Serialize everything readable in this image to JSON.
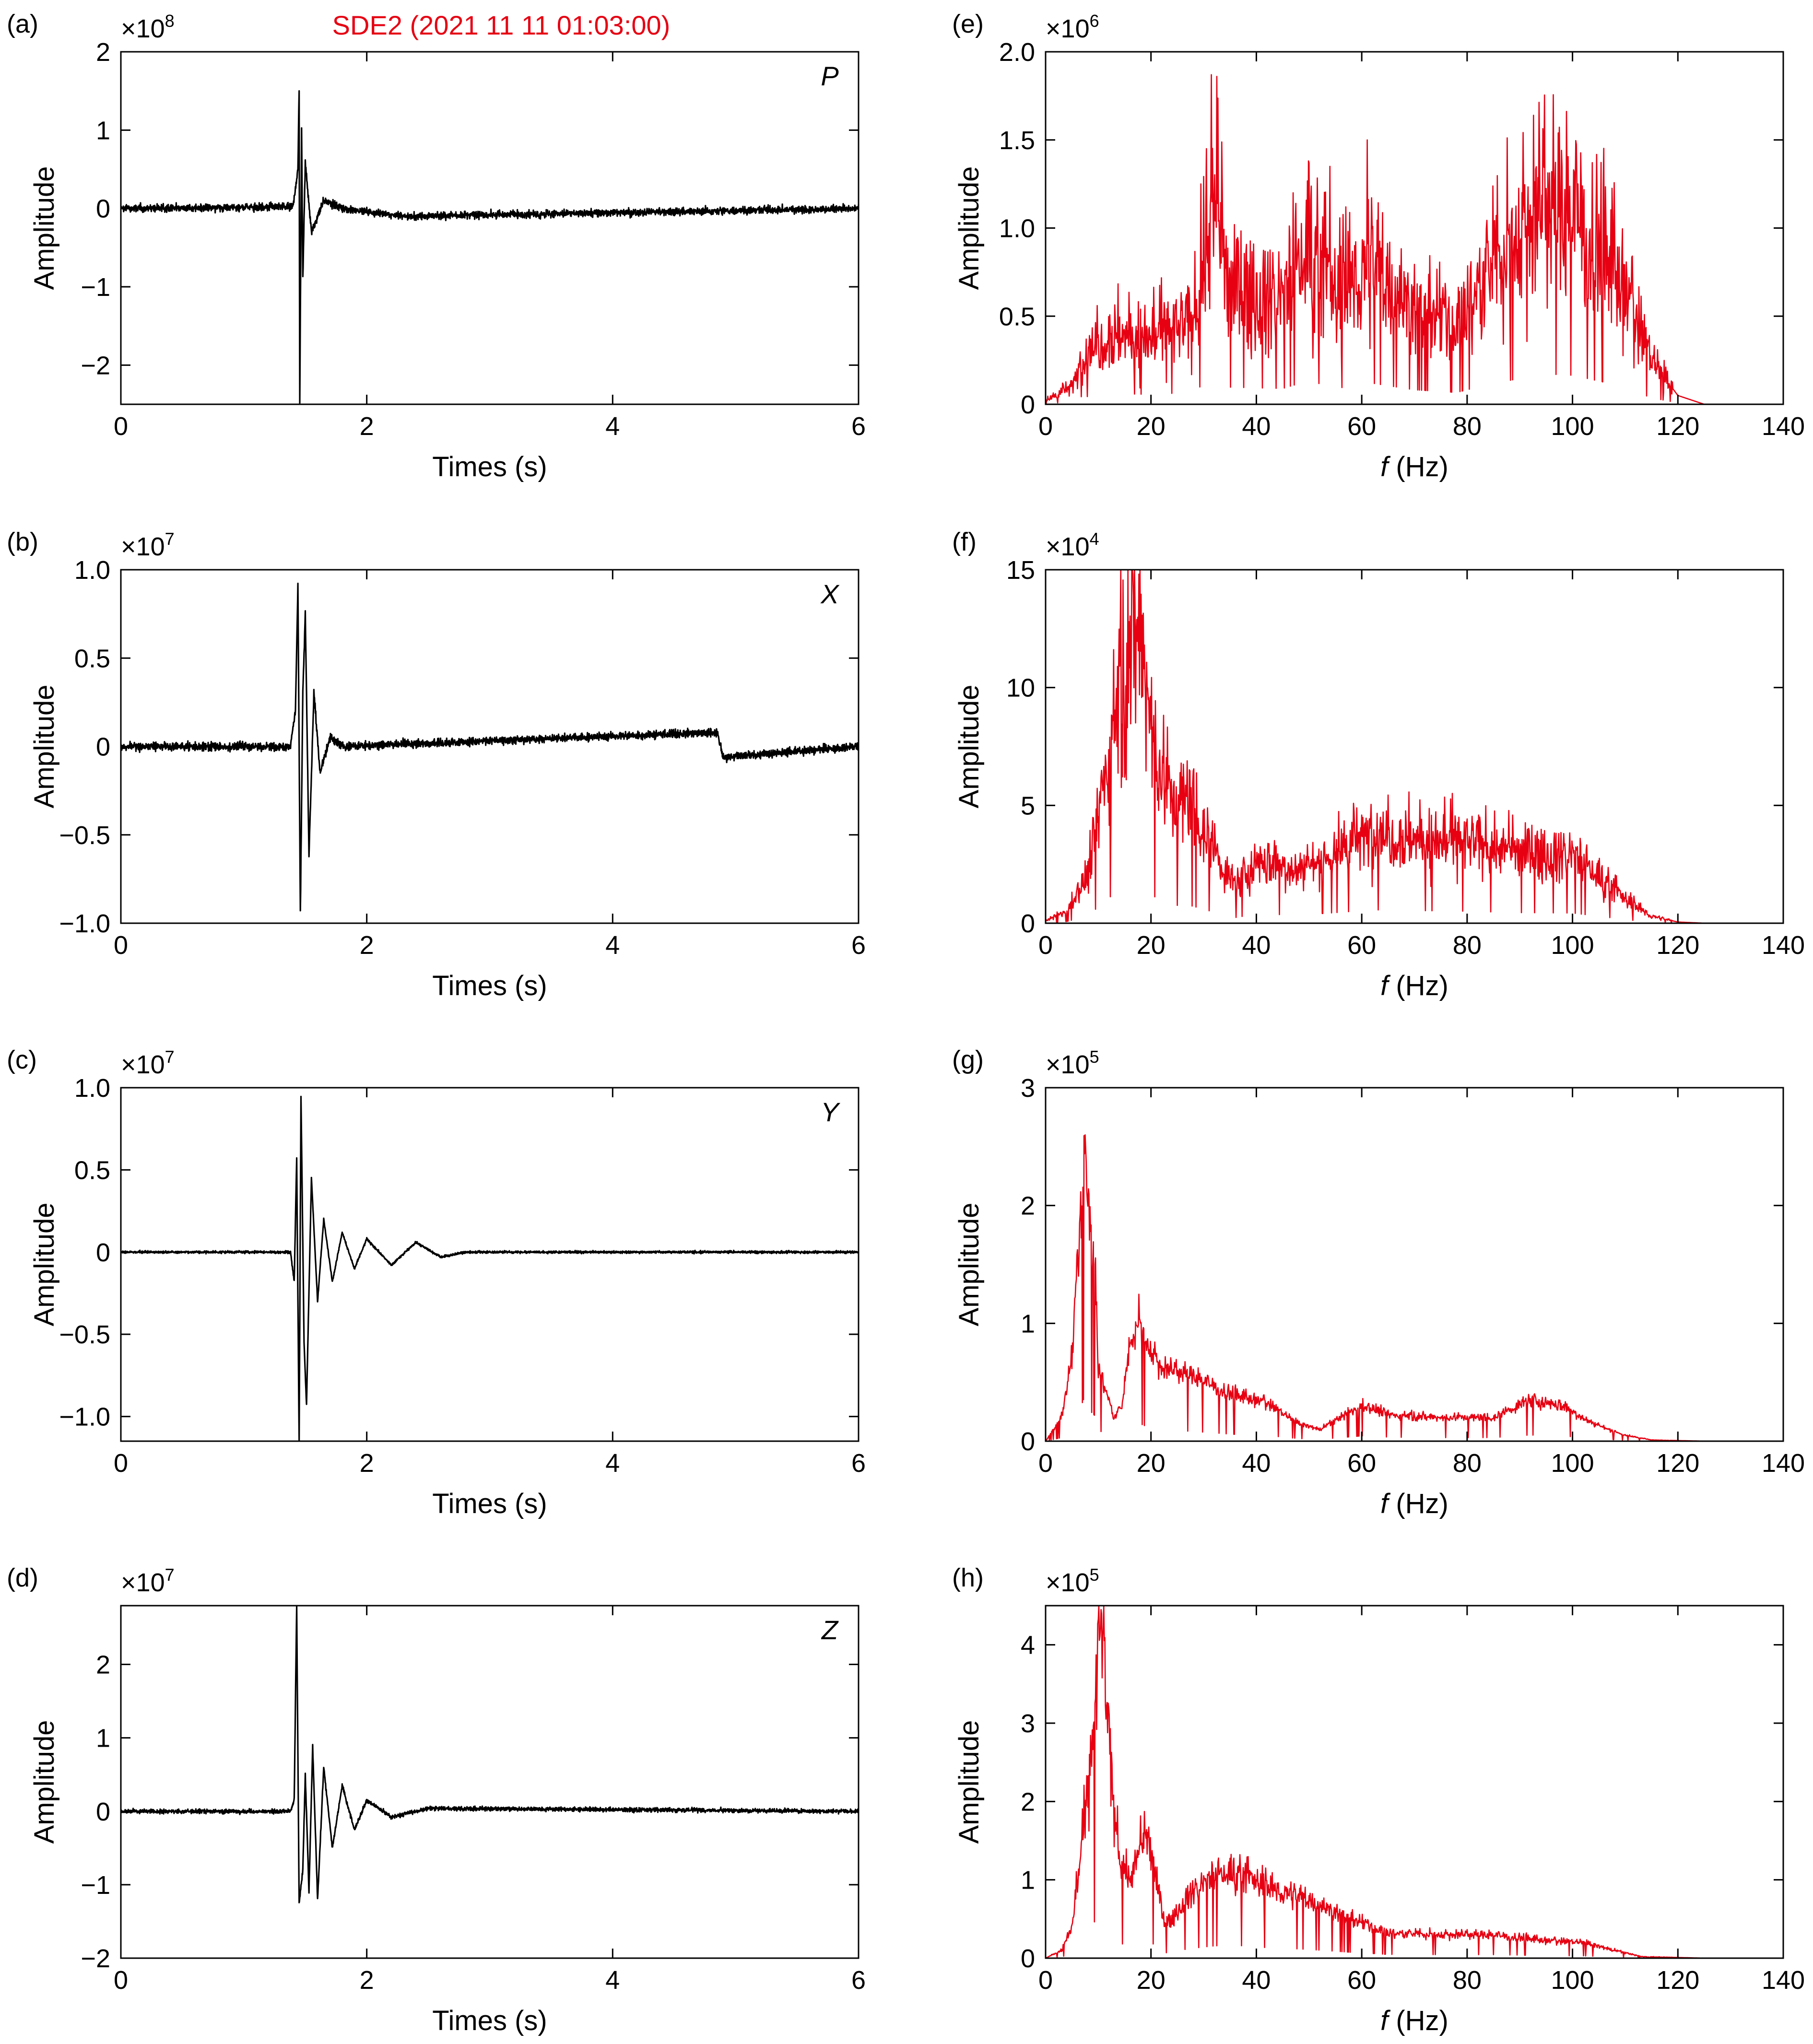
{
  "figure": {
    "title": "SDE2 (2021 11 11 01:03:00)",
    "title_color": "#e60012",
    "time_series_color": "#000000",
    "spectrum_color": "#e60012"
  },
  "chart_data": [
    {
      "panel": "(a)",
      "type": "line",
      "kind": "waveform",
      "component": "P",
      "xlabel": "Times (s)",
      "ylabel": "Amplitude",
      "exponent_base": "×10",
      "exponent_power": "8",
      "xlim": [
        0,
        6
      ],
      "ylim": [
        -2.5,
        2
      ],
      "xticks": [
        0,
        2,
        4,
        6
      ],
      "xticklabels": [
        "0",
        "2",
        "4",
        "6"
      ],
      "yticks": [
        -2,
        -1,
        0,
        1,
        2
      ],
      "yticklabels": [
        "−2",
        "−1",
        "0",
        "1",
        "2"
      ],
      "series": [
        {
          "onset": 1.46,
          "noise": 0.05,
          "points": [
            [
              0,
              0.0
            ],
            [
              1.4,
              0.02
            ],
            [
              1.44,
              0.5
            ],
            [
              1.45,
              1.5
            ],
            [
              1.455,
              -2.5
            ],
            [
              1.47,
              1.0
            ],
            [
              1.48,
              -0.9
            ],
            [
              1.5,
              0.6
            ],
            [
              1.55,
              -0.3
            ],
            [
              1.65,
              0.1
            ],
            [
              1.8,
              0.0
            ],
            [
              2.3,
              -0.1
            ],
            [
              6,
              0.0
            ]
          ]
        }
      ]
    },
    {
      "panel": "(b)",
      "type": "line",
      "kind": "waveform",
      "component": "X",
      "xlabel": "Times (s)",
      "ylabel": "Amplitude",
      "exponent_base": "×10",
      "exponent_power": "7",
      "xlim": [
        0,
        6
      ],
      "ylim": [
        -1.0,
        1.0
      ],
      "xticks": [
        0,
        2,
        4,
        6
      ],
      "xticklabels": [
        "0",
        "2",
        "4",
        "6"
      ],
      "yticks": [
        -1.0,
        -0.5,
        0,
        0.5,
        1.0
      ],
      "yticklabels": [
        "−1.0",
        "−0.5",
        "0",
        "0.5",
        "1.0"
      ],
      "series": [
        {
          "onset": 1.4,
          "noise": 0.025,
          "points": [
            [
              0,
              0.0
            ],
            [
              1.38,
              0.0
            ],
            [
              1.42,
              0.2
            ],
            [
              1.44,
              0.91
            ],
            [
              1.46,
              -0.95
            ],
            [
              1.48,
              0.3
            ],
            [
              1.5,
              0.76
            ],
            [
              1.53,
              -0.62
            ],
            [
              1.57,
              0.31
            ],
            [
              1.62,
              -0.15
            ],
            [
              1.7,
              0.05
            ],
            [
              1.8,
              0.0
            ],
            [
              4.85,
              0.08
            ],
            [
              4.9,
              -0.06
            ],
            [
              6,
              0.0
            ]
          ]
        }
      ]
    },
    {
      "panel": "(c)",
      "type": "line",
      "kind": "waveform",
      "component": "Y",
      "xlabel": "Times (s)",
      "ylabel": "Amplitude",
      "exponent_base": "×10",
      "exponent_power": "7",
      "xlim": [
        0,
        6
      ],
      "ylim": [
        -1.15,
        1.0
      ],
      "xticks": [
        0,
        2,
        4,
        6
      ],
      "xticklabels": [
        "0",
        "2",
        "4",
        "6"
      ],
      "yticks": [
        -1.0,
        -0.5,
        0,
        0.5,
        1.0
      ],
      "yticklabels": [
        "−1.0",
        "−0.5",
        "0",
        "0.5",
        "1.0"
      ],
      "series": [
        {
          "onset": 1.4,
          "noise": 0.008,
          "points": [
            [
              0,
              0.0
            ],
            [
              1.38,
              0.0
            ],
            [
              1.41,
              -0.18
            ],
            [
              1.43,
              0.57
            ],
            [
              1.45,
              -1.15
            ],
            [
              1.465,
              0.95
            ],
            [
              1.49,
              -0.55
            ],
            [
              1.51,
              -0.93
            ],
            [
              1.55,
              0.45
            ],
            [
              1.6,
              -0.3
            ],
            [
              1.65,
              0.2
            ],
            [
              1.72,
              -0.18
            ],
            [
              1.8,
              0.12
            ],
            [
              1.9,
              -0.1
            ],
            [
              2.0,
              0.08
            ],
            [
              2.2,
              -0.08
            ],
            [
              2.4,
              0.06
            ],
            [
              2.6,
              -0.03
            ],
            [
              2.8,
              0.0
            ],
            [
              6,
              0.0
            ]
          ]
        }
      ]
    },
    {
      "panel": "(d)",
      "type": "line",
      "kind": "waveform",
      "component": "Z",
      "xlabel": "Times (s)",
      "ylabel": "Amplitude",
      "exponent_base": "×10",
      "exponent_power": "7",
      "xlim": [
        0,
        6
      ],
      "ylim": [
        -2,
        2.8
      ],
      "xticks": [
        0,
        2,
        4,
        6
      ],
      "xticklabels": [
        "0",
        "2",
        "4",
        "6"
      ],
      "yticks": [
        -2,
        -1,
        0,
        1,
        2
      ],
      "yticklabels": [
        "−2",
        "−1",
        "0",
        "1",
        "2"
      ],
      "series": [
        {
          "onset": 1.4,
          "noise": 0.03,
          "points": [
            [
              0,
              0.0
            ],
            [
              1.38,
              0.0
            ],
            [
              1.41,
              0.15
            ],
            [
              1.43,
              2.8
            ],
            [
              1.45,
              -1.25
            ],
            [
              1.48,
              -0.8
            ],
            [
              1.5,
              0.5
            ],
            [
              1.53,
              -1.1
            ],
            [
              1.56,
              0.88
            ],
            [
              1.6,
              -1.2
            ],
            [
              1.65,
              0.6
            ],
            [
              1.72,
              -0.5
            ],
            [
              1.8,
              0.35
            ],
            [
              1.9,
              -0.25
            ],
            [
              2.0,
              0.15
            ],
            [
              2.2,
              -0.08
            ],
            [
              2.5,
              0.04
            ],
            [
              6,
              0.0
            ]
          ]
        }
      ]
    },
    {
      "panel": "(e)",
      "type": "line",
      "kind": "spectrum",
      "xlabel": "f (Hz)",
      "ylabel": "Amplitude",
      "exponent_base": "×10",
      "exponent_power": "6",
      "xlim": [
        0,
        140
      ],
      "ylim": [
        0,
        2.0
      ],
      "xticks": [
        0,
        20,
        40,
        60,
        80,
        100,
        120,
        140
      ],
      "xticklabels": [
        "0",
        "20",
        "40",
        "60",
        "80",
        "100",
        "120",
        "140"
      ],
      "yticks": [
        0,
        0.5,
        1.0,
        1.5,
        2.0
      ],
      "yticklabels": [
        "0",
        "0.5",
        "1.0",
        "1.5",
        "2.0"
      ],
      "series": [
        {
          "noise": 0.38,
          "fmax": 125,
          "envelope": [
            [
              0,
              0.02
            ],
            [
              5,
              0.1
            ],
            [
              8,
              0.3
            ],
            [
              12,
              0.4
            ],
            [
              20,
              0.38
            ],
            [
              28,
              0.45
            ],
            [
              32,
              1.1
            ],
            [
              35,
              0.65
            ],
            [
              45,
              0.6
            ],
            [
              50,
              0.9
            ],
            [
              55,
              0.6
            ],
            [
              62,
              0.8
            ],
            [
              70,
              0.55
            ],
            [
              78,
              0.45
            ],
            [
              85,
              0.8
            ],
            [
              95,
              1.15
            ],
            [
              100,
              1.1
            ],
            [
              108,
              0.75
            ],
            [
              115,
              0.25
            ],
            [
              120,
              0.05
            ],
            [
              125,
              0.0
            ]
          ],
          "peaks": [
            [
              31.5,
              1.87
            ],
            [
              32.5,
              1.86
            ],
            [
              30.5,
              1.45
            ],
            [
              29.5,
              1.25
            ],
            [
              33.5,
              1.2
            ],
            [
              50,
              1.37
            ],
            [
              54,
              1.35
            ],
            [
              61,
              1.5
            ],
            [
              57,
              1.12
            ],
            [
              47,
              1.2
            ],
            [
              96,
              1.32
            ],
            [
              99,
              1.3
            ],
            [
              101,
              1.25
            ]
          ]
        }
      ]
    },
    {
      "panel": "(f)",
      "type": "line",
      "kind": "spectrum",
      "xlabel": "f (Hz)",
      "ylabel": "Amplitude",
      "exponent_base": "×10",
      "exponent_power": "4",
      "xlim": [
        0,
        140
      ],
      "ylim": [
        0,
        15
      ],
      "xticks": [
        0,
        20,
        40,
        60,
        80,
        100,
        120,
        140
      ],
      "xticklabels": [
        "0",
        "20",
        "40",
        "60",
        "80",
        "100",
        "120",
        "140"
      ],
      "yticks": [
        0,
        5,
        10,
        15
      ],
      "yticklabels": [
        "0",
        "5",
        "10",
        "15"
      ],
      "series": [
        {
          "noise": 0.28,
          "fmax": 125,
          "envelope": [
            [
              0,
              0.1
            ],
            [
              4,
              0.5
            ],
            [
              8,
              2.0
            ],
            [
              11,
              6.0
            ],
            [
              14,
              9.5
            ],
            [
              17,
              12.8
            ],
            [
              19,
              10.5
            ],
            [
              21,
              7.0
            ],
            [
              24,
              5.0
            ],
            [
              27,
              5.2
            ],
            [
              30,
              4.0
            ],
            [
              34,
              2.2
            ],
            [
              36,
              1.6
            ],
            [
              40,
              2.6
            ],
            [
              48,
              2.3
            ],
            [
              55,
              3.0
            ],
            [
              62,
              3.8
            ],
            [
              70,
              3.6
            ],
            [
              80,
              3.4
            ],
            [
              90,
              3.0
            ],
            [
              100,
              2.9
            ],
            [
              106,
              1.8
            ],
            [
              110,
              1.0
            ],
            [
              115,
              0.3
            ],
            [
              120,
              0.05
            ],
            [
              125,
              0.0
            ]
          ],
          "peaks": [
            [
              17,
              13.5
            ]
          ]
        }
      ]
    },
    {
      "panel": "(g)",
      "type": "line",
      "kind": "spectrum",
      "xlabel": "f (Hz)",
      "ylabel": "Amplitude",
      "exponent_base": "×10",
      "exponent_power": "5",
      "xlim": [
        0,
        140
      ],
      "ylim": [
        0,
        3
      ],
      "xticks": [
        0,
        20,
        40,
        60,
        80,
        100,
        120,
        140
      ],
      "xticklabels": [
        "0",
        "20",
        "40",
        "60",
        "80",
        "100",
        "120",
        "140"
      ],
      "yticks": [
        0,
        1,
        2,
        3
      ],
      "yticklabels": [
        "0",
        "1",
        "2",
        "3"
      ],
      "series": [
        {
          "noise": 0.12,
          "fmax": 125,
          "envelope": [
            [
              0,
              0.0
            ],
            [
              3,
              0.2
            ],
            [
              5,
              0.7
            ],
            [
              6.5,
              1.8
            ],
            [
              7.5,
              2.6
            ],
            [
              8.5,
              1.7
            ],
            [
              9.5,
              1.4
            ],
            [
              10,
              0.6
            ],
            [
              11,
              0.5
            ],
            [
              13,
              0.2
            ],
            [
              14.5,
              0.3
            ],
            [
              16,
              0.8
            ],
            [
              17.5,
              1.05
            ],
            [
              19,
              0.85
            ],
            [
              22,
              0.62
            ],
            [
              28,
              0.56
            ],
            [
              35,
              0.4
            ],
            [
              42,
              0.32
            ],
            [
              48,
              0.15
            ],
            [
              52,
              0.1
            ],
            [
              56,
              0.2
            ],
            [
              60,
              0.3
            ],
            [
              66,
              0.22
            ],
            [
              75,
              0.2
            ],
            [
              85,
              0.2
            ],
            [
              92,
              0.35
            ],
            [
              98,
              0.3
            ],
            [
              104,
              0.15
            ],
            [
              110,
              0.05
            ],
            [
              115,
              0.01
            ],
            [
              125,
              0.0
            ]
          ],
          "peaks": [
            [
              7.5,
              2.6
            ],
            [
              8.5,
              1.78
            ]
          ]
        }
      ]
    },
    {
      "panel": "(h)",
      "type": "line",
      "kind": "spectrum",
      "xlabel": "f (Hz)",
      "ylabel": "Amplitude",
      "exponent_base": "×10",
      "exponent_power": "5",
      "xlim": [
        0,
        140
      ],
      "ylim": [
        0,
        4.5
      ],
      "xticks": [
        0,
        20,
        40,
        60,
        80,
        100,
        120,
        140
      ],
      "xticklabels": [
        "0",
        "20",
        "40",
        "60",
        "80",
        "100",
        "120",
        "140"
      ],
      "yticks": [
        0,
        1,
        2,
        3,
        4
      ],
      "yticklabels": [
        "0",
        "1",
        "2",
        "3",
        "4"
      ],
      "series": [
        {
          "noise": 0.15,
          "fmax": 125,
          "envelope": [
            [
              0,
              0.0
            ],
            [
              3,
              0.1
            ],
            [
              5,
              0.4
            ],
            [
              7,
              1.5
            ],
            [
              8.5,
              2.4
            ],
            [
              9.5,
              3.3
            ],
            [
              10.5,
              4.45
            ],
            [
              11.5,
              3.3
            ],
            [
              12.5,
              2.2
            ],
            [
              14,
              1.3
            ],
            [
              16,
              1.0
            ],
            [
              18,
              1.4
            ],
            [
              19.5,
              1.55
            ],
            [
              21,
              1.0
            ],
            [
              22.5,
              0.45
            ],
            [
              24,
              0.5
            ],
            [
              27,
              0.8
            ],
            [
              32,
              1.05
            ],
            [
              36,
              1.1
            ],
            [
              42,
              0.9
            ],
            [
              50,
              0.75
            ],
            [
              58,
              0.5
            ],
            [
              65,
              0.32
            ],
            [
              75,
              0.3
            ],
            [
              85,
              0.3
            ],
            [
              95,
              0.22
            ],
            [
              102,
              0.2
            ],
            [
              108,
              0.1
            ],
            [
              113,
              0.02
            ],
            [
              125,
              0.0
            ]
          ],
          "peaks": [
            [
              10.5,
              4.45
            ],
            [
              19,
              1.58
            ]
          ]
        }
      ]
    }
  ]
}
